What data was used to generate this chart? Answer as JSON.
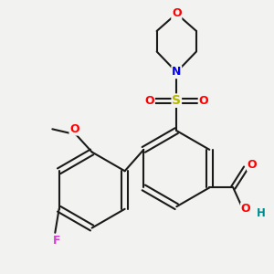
{
  "bg_color": "#f2f2f0",
  "bond_color": "#1a1a1a",
  "atom_colors": {
    "O": "#ff0000",
    "N": "#0000ff",
    "S": "#b8b800",
    "F": "#cc44cc",
    "H": "#008b8b",
    "C": "#1a1a1a"
  }
}
